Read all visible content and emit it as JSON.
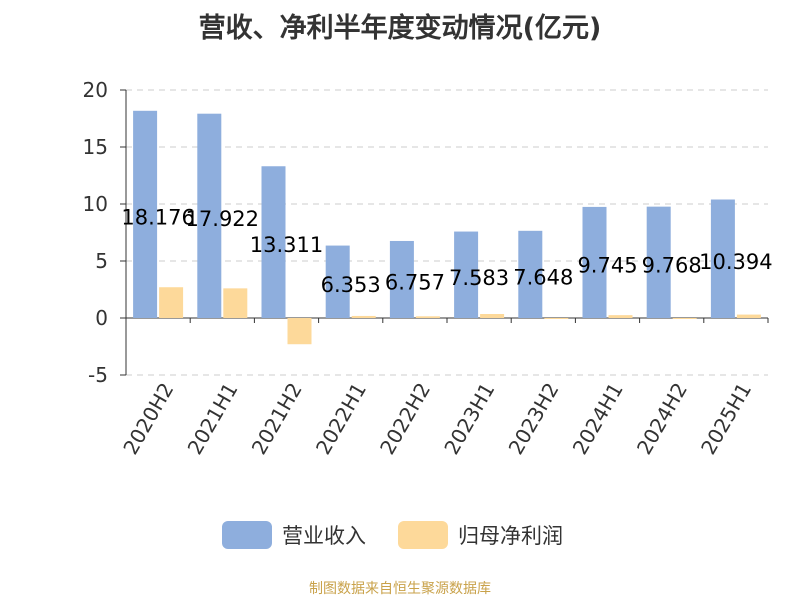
{
  "chart_data": {
    "type": "bar",
    "title": "营收、净利半年度变动情况(亿元)",
    "categories": [
      "2020H2",
      "2021H1",
      "2021H2",
      "2022H1",
      "2022H2",
      "2023H1",
      "2023H2",
      "2024H1",
      "2024H2",
      "2025H1"
    ],
    "series": [
      {
        "name": "营业收入",
        "color": "#8eaedd",
        "values": [
          18.176,
          17.922,
          13.311,
          6.353,
          6.757,
          7.583,
          7.648,
          9.745,
          9.768,
          10.394
        ],
        "labels": [
          "18.176",
          "17.922",
          "13.311",
          "6.353",
          "6.757",
          "7.583",
          "7.648",
          "9.745",
          "9.768",
          "10.394"
        ]
      },
      {
        "name": "归母净利润",
        "color": "#fdd99a",
        "values": [
          2.7,
          2.6,
          -2.3,
          0.18,
          0.15,
          0.35,
          -0.08,
          0.25,
          -0.05,
          0.3
        ]
      }
    ],
    "yticks": [
      "20",
      "15",
      "10",
      "5",
      "0",
      "-5"
    ],
    "ylim": [
      -5,
      20
    ],
    "xlabel": "",
    "ylabel": "",
    "grid": true,
    "legend": "bottom-center"
  },
  "footer": {
    "source": "制图数据来自恒生聚源数据库"
  }
}
